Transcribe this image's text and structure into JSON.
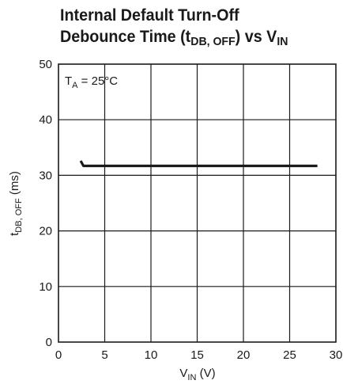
{
  "title_line1": "Internal Default Turn-Off",
  "title_line2_pre": "Debounce Time (t",
  "title_line2_sub": "DB, OFF",
  "title_line2_mid": ") vs V",
  "title_line2_sub2": "IN",
  "colors": {
    "line": "#1a1a1a",
    "grid": "#1a1a1a",
    "background": "#ffffff"
  },
  "chart_data": {
    "type": "line",
    "title": "Internal Default Turn-Off Debounce Time (tDB, OFF) vs VIN",
    "xlabel": {
      "main": "V",
      "sub": "IN",
      "unit": " (V)"
    },
    "ylabel": {
      "main": "t",
      "sub": "DB, OFF",
      "unit": " (ms)"
    },
    "xlim": [
      0,
      30
    ],
    "ylim": [
      0,
      50
    ],
    "xticks": [
      0,
      5,
      10,
      15,
      20,
      25,
      30
    ],
    "yticks": [
      0,
      10,
      20,
      30,
      40,
      50
    ],
    "grid": true,
    "annotation": {
      "main": "T",
      "sub": "A",
      "rest": " = 25°C"
    },
    "series": [
      {
        "x": [
          2.4,
          2.7,
          5,
          10,
          15,
          20,
          25,
          28
        ],
        "y": [
          32.6,
          31.7,
          31.7,
          31.7,
          31.7,
          31.7,
          31.7,
          31.7
        ]
      }
    ]
  }
}
